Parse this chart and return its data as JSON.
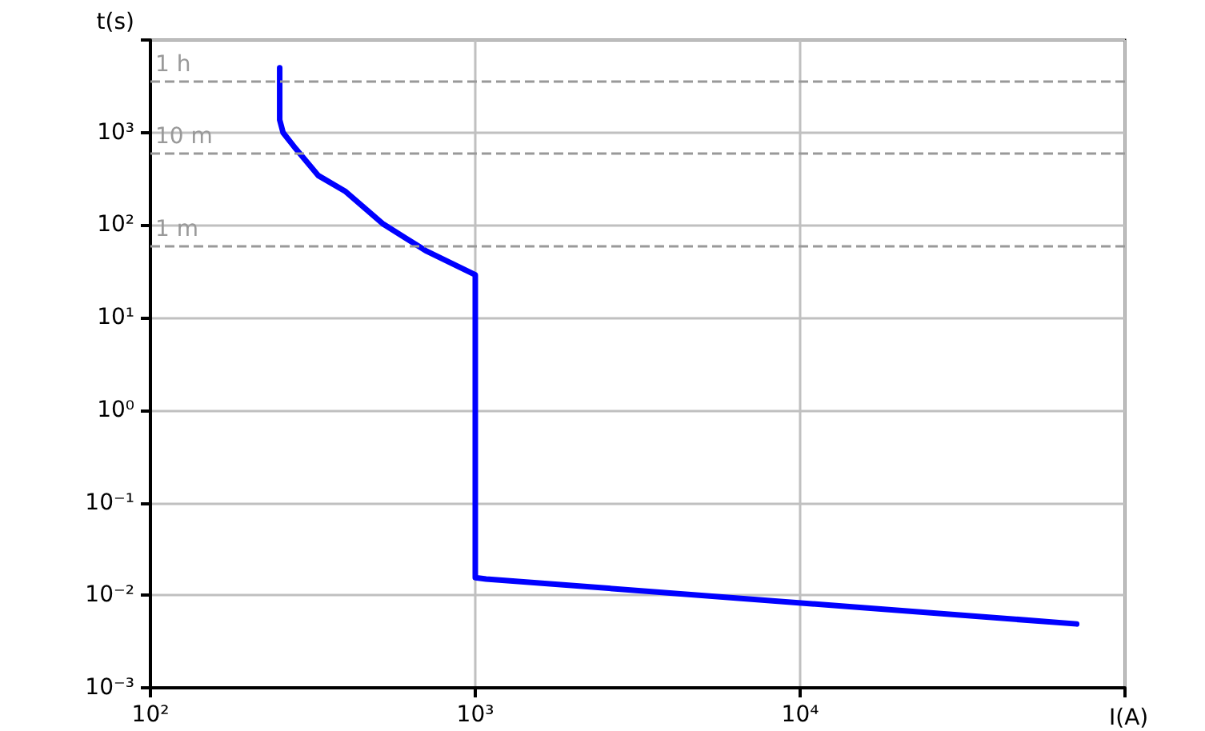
{
  "chart_data": {
    "type": "line",
    "xlabel": "I(A)",
    "ylabel": "t(s)",
    "log": "xy",
    "grid": true,
    "marker": "none",
    "line_style": "solid",
    "xlim": [
      100,
      100000
    ],
    "ylim": [
      0.001,
      10000
    ],
    "xticks": [
      {
        "value": 100,
        "label": "10²"
      },
      {
        "value": 1000,
        "label": "10³"
      },
      {
        "value": 10000,
        "label": "10⁴"
      },
      {
        "value": 100000,
        "label": null
      }
    ],
    "yticks": [
      {
        "value": 0.001,
        "label": "10⁻³"
      },
      {
        "value": 0.01,
        "label": "10⁻²"
      },
      {
        "value": 0.1,
        "label": "10⁻¹"
      },
      {
        "value": 1,
        "label": "10⁰"
      },
      {
        "value": 10,
        "label": "10¹"
      },
      {
        "value": 100,
        "label": "10²"
      },
      {
        "value": 1000,
        "label": "10³"
      },
      {
        "value": 10000,
        "label": null
      }
    ],
    "series": [
      {
        "color": "#0000ff",
        "x": [
          250,
          250,
          256,
          280,
          329,
          399,
          518,
          703,
          1000,
          1000,
          1080,
          71000
        ],
        "values": [
          5000,
          1370,
          1000,
          670,
          342,
          230,
          104,
          53,
          29,
          0.0155,
          0.015,
          0.0049
        ]
      }
    ],
    "ref_lines": [
      {
        "axis": "y",
        "value": 3600,
        "label": "1 h",
        "color": "#999999",
        "line_style": "dashed"
      },
      {
        "axis": "y",
        "value": 600,
        "label": "10 m",
        "color": "#999999",
        "line_style": "dashed"
      },
      {
        "axis": "y",
        "value": 60,
        "label": "1 m",
        "color": "#999999",
        "line_style": "dashed"
      }
    ]
  }
}
